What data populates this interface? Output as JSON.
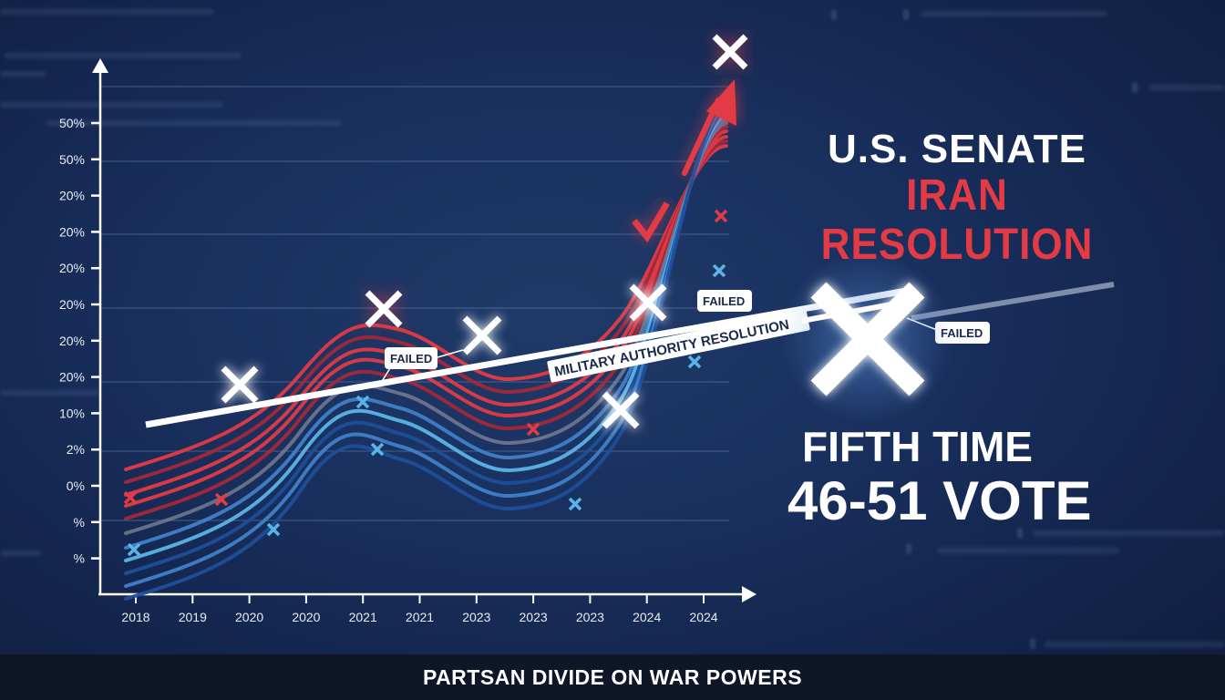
{
  "title": {
    "line1": "U.S. SENATE",
    "line2": "IRAN RESOLUTION"
  },
  "callouts": {
    "fifth_time": "FIFTH TIME",
    "vote": "46-51 VOTE"
  },
  "footer": {
    "text": "PARTSAN DIVIDE ON WAR POWERS"
  },
  "colors": {
    "background": "#1a3160",
    "republican_red": "#e23b45",
    "dark_red": "#a3283a",
    "democrat_blue": "#3f7fc9",
    "light_blue": "#5ab4e6",
    "navy_blue": "#1f4f9a",
    "neutral_gray": "#7a8196",
    "trend_white": "#ffffff",
    "footer_bg": "#0e1628"
  },
  "chart_data": {
    "type": "line",
    "title": "U.S. SENATE IRAN RESOLUTION",
    "subtitle": "PARTSAN DIVIDE ON WAR POWERS",
    "xlabel": "",
    "ylabel": "",
    "grid": true,
    "legend": "none",
    "x_tick_labels": [
      "2018",
      "2019",
      "2020",
      "2020",
      "2021",
      "2021",
      "2023",
      "2023",
      "2023",
      "2024",
      "2024"
    ],
    "y_tick_labels": [
      "50%",
      "50%",
      "20%",
      "20%",
      "20%",
      "20%",
      "20%",
      "20%",
      "10%",
      "2%",
      "0%",
      "%",
      "%"
    ],
    "trend_line": {
      "label": "MILITARY AUTHORITY RESOLUTION",
      "description": "straight white rising trend line from 2018 to beyond 2024"
    },
    "annotations": [
      {
        "text": "FAILED",
        "near": "2021"
      },
      {
        "text": "FAILED",
        "near": "2024"
      },
      {
        "text": "FAILED",
        "near": "big X right of chart"
      }
    ],
    "markers": {
      "large_white_x": [
        "2019-2020",
        "2021",
        "2021-2023",
        "2023-2024 (upper)",
        "2023 (lower)",
        "right of chart (huge)",
        "top (red glow)"
      ],
      "red_check": "2024",
      "red_arrow": "up toward top-right"
    },
    "series": [
      {
        "name": "red-1",
        "color": "#e23b45",
        "shape": "wave rising steeply at end"
      },
      {
        "name": "red-2",
        "color": "#a3283a"
      },
      {
        "name": "red-3",
        "color": "#e23b45"
      },
      {
        "name": "red-4",
        "color": "#e23b45"
      },
      {
        "name": "red-5",
        "color": "#a3283a"
      },
      {
        "name": "gray",
        "color": "#7a8196"
      },
      {
        "name": "blue-1",
        "color": "#3f7fc9"
      },
      {
        "name": "blue-2",
        "color": "#5ab4e6"
      },
      {
        "name": "blue-3",
        "color": "#1f4f9a"
      },
      {
        "name": "blue-4",
        "color": "#3f7fc9"
      },
      {
        "name": "blue-5",
        "color": "#1f4f9a"
      }
    ]
  },
  "labels": {
    "failed": "FAILED",
    "trend": "MILITARY AUTHORITY RESOLUTION"
  }
}
